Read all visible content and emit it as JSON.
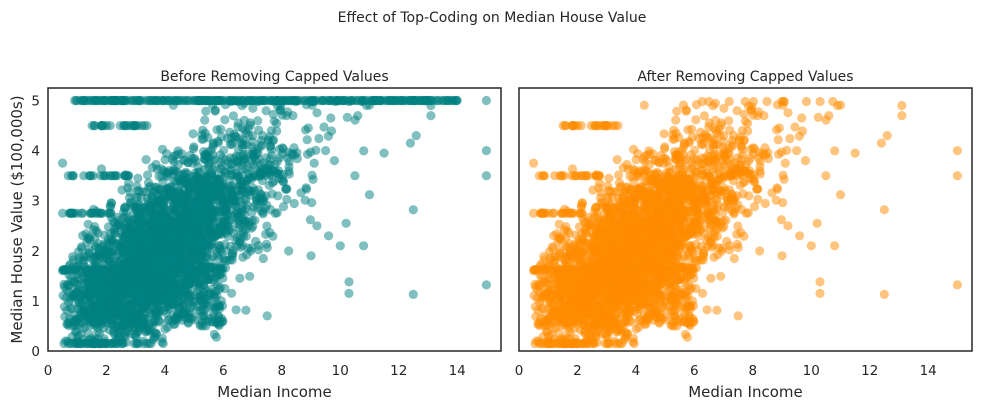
{
  "figure": {
    "suptitle": "Effect of Top-Coding on Median House Value"
  },
  "chart_data": [
    {
      "type": "scatter",
      "title": "Before Removing Capped Values",
      "xlabel": "Median Income",
      "ylabel": "Median House Value ($100,000s)",
      "xlim": [
        0,
        15.5
      ],
      "ylim": [
        0,
        5.25
      ],
      "xticks": [
        "0",
        "2",
        "4",
        "6",
        "8",
        "10",
        "12",
        "14"
      ],
      "yticks": [
        "0",
        "1",
        "2",
        "3",
        "4",
        "5"
      ],
      "grid": false,
      "marker_color": "#008080",
      "alpha": 0.5,
      "cap_value": 5.0,
      "points": [
        [
          15.0,
          5.0
        ],
        [
          15.0,
          4.0
        ],
        [
          15.0,
          3.5
        ],
        [
          15.0,
          1.32
        ],
        [
          13.1,
          4.9
        ],
        [
          13.1,
          4.7
        ],
        [
          12.6,
          4.3
        ],
        [
          12.4,
          4.15
        ],
        [
          12.5,
          2.82
        ],
        [
          12.5,
          1.13
        ],
        [
          11.5,
          3.95
        ],
        [
          11.0,
          3.12
        ],
        [
          10.3,
          1.38
        ],
        [
          10.3,
          1.15
        ],
        [
          10.0,
          2.1
        ],
        [
          10.8,
          2.1
        ],
        [
          9.0,
          1.9
        ],
        [
          10.2,
          2.55
        ],
        [
          10.5,
          3.5
        ],
        [
          10.9,
          4.9
        ],
        [
          10.6,
          4.7
        ],
        [
          9.5,
          4.0
        ],
        [
          9.8,
          3.8
        ],
        [
          9.2,
          2.5
        ],
        [
          9.6,
          2.3
        ],
        [
          7.5,
          0.7
        ],
        [
          5.3,
          0.5
        ],
        [
          3.9,
          0.18
        ],
        [
          2.3,
          0.2
        ],
        [
          1.6,
          0.2
        ],
        [
          0.6,
          0.2
        ],
        [
          0.5,
          3.75
        ],
        [
          0.5,
          2.75
        ],
        [
          0.6,
          1.62
        ],
        [
          0.5,
          1.6
        ]
      ]
    },
    {
      "type": "scatter",
      "title": "After Removing Capped Values",
      "xlabel": "Median Income",
      "xlim": [
        0,
        15.5
      ],
      "ylim": [
        0,
        5.25
      ],
      "xticks": [
        "0",
        "2",
        "4",
        "6",
        "8",
        "10",
        "12",
        "14"
      ],
      "grid": false,
      "marker_color": "#ff8c00",
      "alpha": 0.5,
      "points": [
        [
          15.0,
          4.0
        ],
        [
          15.0,
          3.5
        ],
        [
          15.0,
          1.32
        ],
        [
          13.1,
          4.9
        ],
        [
          13.1,
          4.7
        ],
        [
          12.6,
          4.3
        ],
        [
          12.4,
          4.15
        ],
        [
          12.5,
          2.82
        ],
        [
          12.5,
          1.13
        ],
        [
          11.5,
          3.95
        ],
        [
          11.0,
          3.12
        ],
        [
          10.3,
          1.38
        ],
        [
          10.3,
          1.15
        ],
        [
          10.0,
          2.1
        ],
        [
          10.8,
          2.1
        ],
        [
          9.0,
          1.9
        ],
        [
          10.2,
          2.55
        ],
        [
          10.5,
          3.5
        ],
        [
          10.9,
          4.9
        ],
        [
          10.6,
          4.7
        ],
        [
          9.5,
          4.0
        ],
        [
          9.8,
          3.8
        ],
        [
          9.2,
          2.5
        ],
        [
          9.6,
          2.3
        ],
        [
          7.5,
          0.7
        ],
        [
          5.3,
          0.5
        ],
        [
          3.9,
          0.18
        ],
        [
          2.3,
          0.2
        ],
        [
          1.6,
          0.2
        ],
        [
          0.6,
          0.2
        ],
        [
          0.5,
          3.75
        ],
        [
          0.5,
          2.75
        ],
        [
          0.6,
          1.62
        ],
        [
          0.5,
          1.6
        ]
      ]
    }
  ]
}
